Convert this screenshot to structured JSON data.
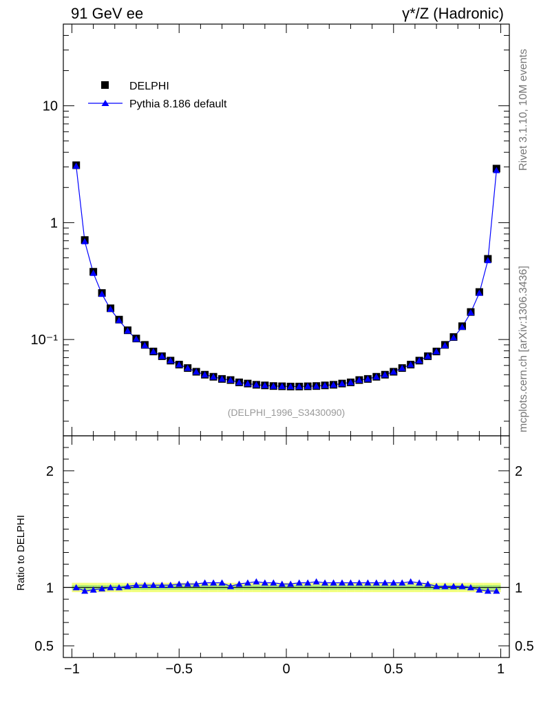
{
  "header": {
    "left_title": "91 GeV ee",
    "right_title": "γ*/Z (Hadronic)"
  },
  "side_labels": {
    "rivet": "Rivet 3.1.10,  10M events",
    "mcplots": "mcplots.cern.ch [arXiv:1306.3436]"
  },
  "watermark": "(DELPHI_1996_S3430090)",
  "colors": {
    "data": "#000000",
    "mc": "#0000ff",
    "band_outer": "#f2ff7f",
    "band_inner": "#a8e878"
  },
  "chart_data": [
    {
      "type": "scatter",
      "yscale": "log",
      "xlim": [
        -1.04,
        1.04
      ],
      "ylim": [
        0.015,
        50
      ],
      "ytick_labels": [
        "10",
        "1",
        "10⁻¹"
      ],
      "legend": {
        "placement": "top-left",
        "data_label": "DELPHI",
        "mc_label": "Pythia 8.186 default"
      },
      "x": [
        -0.98,
        -0.94,
        -0.9,
        -0.86,
        -0.82,
        -0.78,
        -0.74,
        -0.7,
        -0.66,
        -0.62,
        -0.58,
        -0.54,
        -0.5,
        -0.46,
        -0.42,
        -0.38,
        -0.34,
        -0.3,
        -0.26,
        -0.22,
        -0.18,
        -0.14,
        -0.1,
        -0.06,
        -0.02,
        0.02,
        0.06,
        0.1,
        0.14,
        0.18,
        0.22,
        0.26,
        0.3,
        0.34,
        0.38,
        0.42,
        0.46,
        0.5,
        0.54,
        0.58,
        0.62,
        0.66,
        0.7,
        0.74,
        0.78,
        0.82,
        0.86,
        0.9,
        0.94,
        0.98
      ],
      "series": [
        {
          "name": "DELPHI",
          "values": [
            3.1,
            0.71,
            0.38,
            0.25,
            0.185,
            0.148,
            0.12,
            0.102,
            0.09,
            0.079,
            0.072,
            0.066,
            0.061,
            0.057,
            0.053,
            0.05,
            0.048,
            0.046,
            0.045,
            0.043,
            0.042,
            0.041,
            0.0405,
            0.04,
            0.0398,
            0.0396,
            0.0396,
            0.0398,
            0.04,
            0.0405,
            0.041,
            0.042,
            0.043,
            0.045,
            0.046,
            0.048,
            0.05,
            0.053,
            0.057,
            0.061,
            0.066,
            0.072,
            0.079,
            0.09,
            0.105,
            0.13,
            0.172,
            0.255,
            0.49,
            2.9
          ]
        },
        {
          "name": "Pythia 8.186 default",
          "values": [
            3.05,
            0.69,
            0.37,
            0.245,
            0.182,
            0.146,
            0.119,
            0.101,
            0.089,
            0.079,
            0.072,
            0.066,
            0.061,
            0.057,
            0.053,
            0.05,
            0.048,
            0.046,
            0.045,
            0.043,
            0.042,
            0.041,
            0.0405,
            0.04,
            0.0398,
            0.0396,
            0.0396,
            0.0398,
            0.04,
            0.0405,
            0.041,
            0.042,
            0.043,
            0.045,
            0.046,
            0.048,
            0.05,
            0.053,
            0.057,
            0.061,
            0.066,
            0.072,
            0.079,
            0.089,
            0.104,
            0.128,
            0.17,
            0.25,
            0.475,
            2.8
          ]
        }
      ]
    },
    {
      "type": "line",
      "yscale": "linear",
      "xlim": [
        -1.04,
        1.04
      ],
      "ylim": [
        0.4,
        2.3
      ],
      "ylabel": "Ratio to DELPHI",
      "ytick_labels": [
        "2",
        "1",
        "0.5"
      ],
      "xtick_labels": [
        "−1",
        "−0.5",
        "0",
        "0.5",
        "1"
      ],
      "x": [
        -0.98,
        -0.94,
        -0.9,
        -0.86,
        -0.82,
        -0.78,
        -0.74,
        -0.7,
        -0.66,
        -0.62,
        -0.58,
        -0.54,
        -0.5,
        -0.46,
        -0.42,
        -0.38,
        -0.34,
        -0.3,
        -0.26,
        -0.22,
        -0.18,
        -0.14,
        -0.1,
        -0.06,
        -0.02,
        0.02,
        0.06,
        0.1,
        0.14,
        0.18,
        0.22,
        0.26,
        0.3,
        0.34,
        0.38,
        0.42,
        0.46,
        0.5,
        0.54,
        0.58,
        0.62,
        0.66,
        0.7,
        0.74,
        0.78,
        0.82,
        0.86,
        0.9,
        0.94,
        0.98
      ],
      "series": [
        {
          "name": "Pythia 8.186 default",
          "values": [
            1.0,
            0.97,
            0.98,
            0.99,
            1.0,
            1.0,
            1.01,
            1.02,
            1.02,
            1.02,
            1.02,
            1.02,
            1.03,
            1.03,
            1.03,
            1.04,
            1.04,
            1.04,
            1.01,
            1.03,
            1.04,
            1.05,
            1.04,
            1.04,
            1.03,
            1.03,
            1.04,
            1.04,
            1.05,
            1.04,
            1.04,
            1.04,
            1.04,
            1.04,
            1.04,
            1.04,
            1.04,
            1.04,
            1.04,
            1.05,
            1.04,
            1.03,
            1.01,
            1.01,
            1.01,
            1.01,
            1.0,
            0.98,
            0.97,
            0.97
          ]
        }
      ],
      "band": {
        "outer_halfwidth": 0.04,
        "inner_halfwidth": 0.02
      }
    }
  ]
}
